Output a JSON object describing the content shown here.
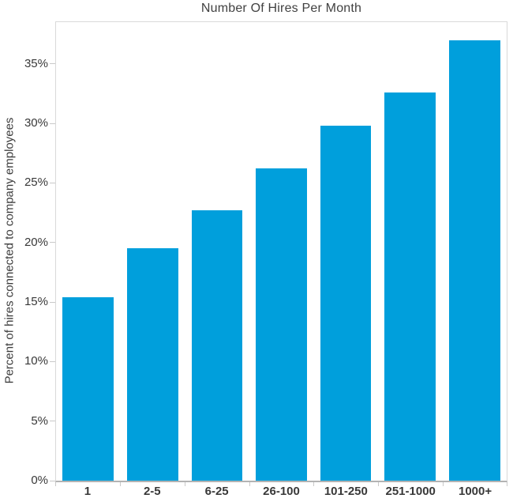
{
  "chart_data": {
    "type": "bar",
    "title": "Number Of Hires Per Month",
    "xlabel": "",
    "ylabel": "Percent of hires connected to company employees",
    "categories": [
      "1",
      "2-5",
      "6-25",
      "26-100",
      "101-250",
      "251-1000",
      "1000+"
    ],
    "values": [
      15.4,
      19.5,
      22.7,
      26.2,
      29.8,
      32.6,
      37.0
    ],
    "value_unit": "%",
    "y_tick_values": [
      0,
      5,
      10,
      15,
      20,
      25,
      30,
      35
    ],
    "y_tick_labels": [
      "0%",
      "5%",
      "10%",
      "15%",
      "20%",
      "25%",
      "30%",
      "35%"
    ],
    "ylim": [
      0,
      38.5
    ],
    "grid": false,
    "legend": "none",
    "bar_color": "#009FDC"
  },
  "colors": {
    "bar": "#009FDC",
    "text": "#3D3D3D",
    "plot_border": "#D9D9D9",
    "axis_line": "#B3B3B3",
    "tick": "#C9C9C9",
    "background": "#FFFFFF"
  }
}
